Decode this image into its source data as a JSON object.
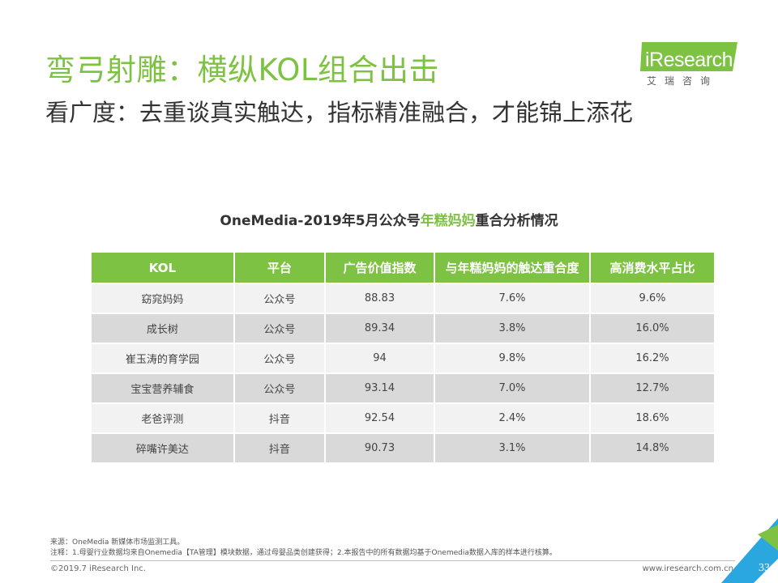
{
  "header": {
    "title": "弯弓射雕：横纵KOL组合出击",
    "subtitle": "看广度：去重谈真实触达，指标精准融合，才能锦上添花"
  },
  "logo": {
    "text": "iResearch",
    "subtext": "艾瑞咨询",
    "color": "#7dc242"
  },
  "table": {
    "title_prefix": "OneMedia-2019年5月公众号",
    "title_highlight": "年糕妈妈",
    "title_suffix": "重合分析情况",
    "columns": [
      "KOL",
      "平台",
      "广告价值指数",
      "与年糕妈妈的触达重合度",
      "高消费水平占比"
    ],
    "rows": [
      {
        "kol": "窈窕妈妈",
        "platform": "公众号",
        "ad_index": "88.83",
        "overlap": "7.6%",
        "high_spend": "9.6%"
      },
      {
        "kol": "成长树",
        "platform": "公众号",
        "ad_index": "89.34",
        "overlap": "3.8%",
        "high_spend": "16.0%"
      },
      {
        "kol": "崔玉涛的育学园",
        "platform": "公众号",
        "ad_index": "94",
        "overlap": "9.8%",
        "high_spend": "16.2%"
      },
      {
        "kol": "宝宝营养辅食",
        "platform": "公众号",
        "ad_index": "93.14",
        "overlap": "7.0%",
        "high_spend": "12.7%"
      },
      {
        "kol": "老爸评测",
        "platform": "抖音",
        "ad_index": "92.54",
        "overlap": "2.4%",
        "high_spend": "18.6%"
      },
      {
        "kol": "碎嘴许美达",
        "platform": "抖音",
        "ad_index": "90.73",
        "overlap": "3.1%",
        "high_spend": "14.8%"
      }
    ],
    "header_color": "#7dc242"
  },
  "footer": {
    "source": "来源：OneMedia 新媒体市场监测工具。",
    "note": "注释：1.母婴行业数据均来自Onemedia【TA管理】模块数据，通过母婴品类创建获得；2.本报告中的所有数据均基于Onemedia数据入库的样本进行核算。",
    "copyright": "©2019.7 iResearch Inc.",
    "website": "www.iresearch.com.cn",
    "page_number": "33"
  }
}
